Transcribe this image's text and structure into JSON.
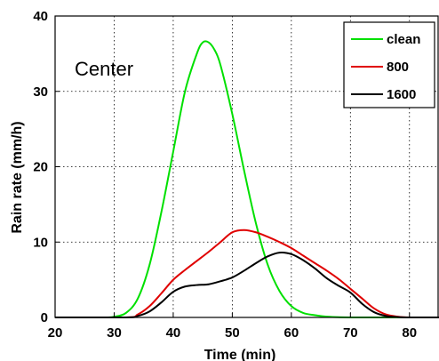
{
  "chart_data": {
    "type": "line",
    "xlabel": "Time (min)",
    "ylabel": "Rain rate (mm/h)",
    "xlim": [
      20,
      85
    ],
    "ylim": [
      0,
      40
    ],
    "xticks": [
      20,
      30,
      40,
      50,
      60,
      70,
      80
    ],
    "yticks": [
      0,
      10,
      20,
      30,
      40
    ],
    "grid": true,
    "legend_position": "top-right",
    "annotation": "Center",
    "series": [
      {
        "name": "clean",
        "color": "#00e000",
        "x": [
          20,
          28,
          30,
          32,
          34,
          36,
          38,
          40,
          42,
          44,
          45,
          46,
          47,
          48,
          50,
          52,
          54,
          56,
          58,
          60,
          62,
          64,
          66,
          70,
          75,
          80,
          85
        ],
        "y": [
          0,
          0,
          0.1,
          0.6,
          2.5,
          7,
          14,
          22,
          30,
          35,
          36.5,
          36.5,
          35.5,
          33.5,
          27,
          19.5,
          12.5,
          7,
          3.5,
          1.5,
          0.6,
          0.3,
          0.1,
          0,
          0,
          0,
          0
        ]
      },
      {
        "name": "800",
        "color": "#e00000",
        "x": [
          20,
          32,
          34,
          36,
          38,
          40,
          42,
          44,
          46,
          48,
          50,
          52,
          54,
          56,
          58,
          60,
          62,
          64,
          66,
          68,
          70,
          72,
          74,
          76,
          78,
          80,
          85
        ],
        "y": [
          0,
          0,
          0.4,
          1.5,
          3.2,
          5,
          6.3,
          7.5,
          8.7,
          10,
          11.3,
          11.6,
          11.3,
          10.7,
          10,
          9.2,
          8.2,
          7.2,
          6.2,
          5.1,
          3.8,
          2.5,
          1.2,
          0.4,
          0.1,
          0,
          0
        ]
      },
      {
        "name": "1600",
        "color": "#000000",
        "x": [
          20,
          32,
          34,
          36,
          38,
          40,
          42,
          44,
          46,
          48,
          50,
          52,
          54,
          56,
          58,
          60,
          62,
          64,
          66,
          68,
          70,
          72,
          74,
          76,
          78,
          80,
          85
        ],
        "y": [
          0,
          0,
          0.2,
          0.8,
          2,
          3.4,
          4.1,
          4.3,
          4.4,
          4.8,
          5.3,
          6.2,
          7.2,
          8.1,
          8.6,
          8.4,
          7.6,
          6.5,
          5.2,
          4.2,
          3.3,
          1.8,
          0.7,
          0.2,
          0.05,
          0,
          0
        ]
      }
    ]
  }
}
